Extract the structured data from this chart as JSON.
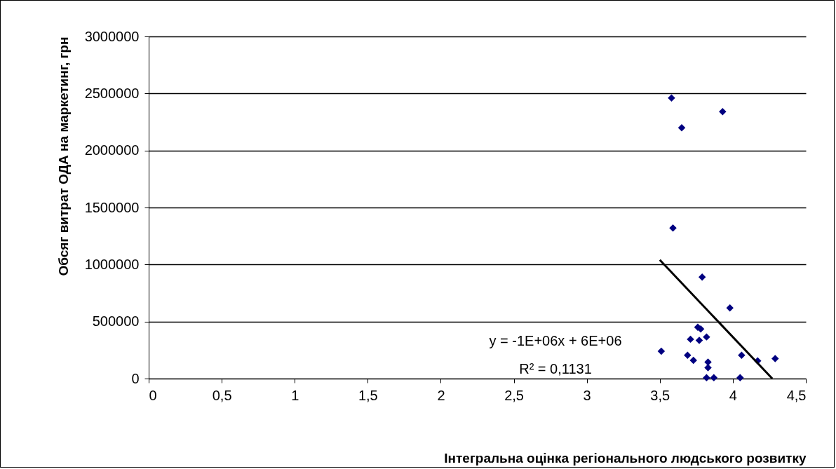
{
  "chart_data": {
    "type": "scatter",
    "xlabel": "Інтегральна оцінка регіонального людського розвитку",
    "ylabel": "Обсяг витрат ОДА на маркетинг, грн",
    "xlim": [
      0,
      4.5
    ],
    "ylim": [
      0,
      3000000
    ],
    "xticks": [
      0,
      {
        "value": 0.5,
        "label": "0,5"
      },
      1,
      {
        "value": 1.5,
        "label": "1,5"
      },
      2,
      {
        "value": 2.5,
        "label": "2,5"
      },
      3,
      {
        "value": 3.5,
        "label": "3,5"
      },
      4,
      {
        "value": 4.5,
        "label": "4,5"
      }
    ],
    "yticks": [
      0,
      500000,
      1000000,
      1500000,
      2000000,
      2500000,
      3000000
    ],
    "grid": "y",
    "series": [
      {
        "marker": "diamond",
        "color": "#000080",
        "x": [
          3.51,
          3.58,
          3.93,
          3.65,
          3.59,
          3.79,
          3.98,
          3.76,
          3.78,
          3.71,
          3.77,
          3.82,
          3.69,
          3.73,
          4.06,
          4.17,
          4.29,
          3.83,
          3.83,
          3.82,
          3.87,
          4.05
        ],
        "values": [
          240000,
          2460000,
          2340000,
          2200000,
          1320000,
          890000,
          620000,
          450000,
          435000,
          345000,
          335000,
          365000,
          205000,
          160000,
          205000,
          155000,
          175000,
          145000,
          95000,
          8000,
          8000,
          8000
        ]
      },
      {
        "type": "line",
        "color": "#000000",
        "x": [
          3.5,
          4.27
        ],
        "values": [
          1040000,
          0
        ]
      }
    ],
    "annotations": [
      "y = -1E+06x + 6E+06",
      "R² = 0,1131"
    ]
  }
}
